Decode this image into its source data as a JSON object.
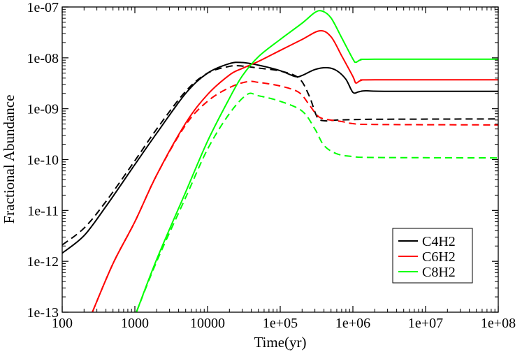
{
  "chart_data": {
    "type": "line",
    "title": "",
    "xlabel": "Time(yr)",
    "ylabel": "Fractional Abundance",
    "xscale": "log",
    "yscale": "log",
    "xlim": [
      100,
      100000000
    ],
    "ylim": [
      1e-13,
      1e-07
    ],
    "xticks": [
      {
        "value": 100,
        "label": "100"
      },
      {
        "value": 1000,
        "label": "1000"
      },
      {
        "value": 10000,
        "label": "10000"
      },
      {
        "value": 100000,
        "label": "1e+05"
      },
      {
        "value": 1000000,
        "label": "1e+06"
      },
      {
        "value": 10000000,
        "label": "1e+07"
      },
      {
        "value": 100000000,
        "label": "1e+08"
      }
    ],
    "yticks": [
      {
        "value": 1e-13,
        "label": "1e-13"
      },
      {
        "value": 1e-12,
        "label": "1e-12"
      },
      {
        "value": 1e-11,
        "label": "1e-11"
      },
      {
        "value": 1e-10,
        "label": "1e-10"
      },
      {
        "value": 1e-09,
        "label": "1e-09"
      },
      {
        "value": 1e-08,
        "label": "1e-08"
      },
      {
        "value": 1e-07,
        "label": "1e-07"
      }
    ],
    "legend_position": "bottom-right",
    "legend": [
      {
        "label": "C4H2",
        "color": "#000000"
      },
      {
        "label": "C6H2",
        "color": "#ff0000"
      },
      {
        "label": "C8H2",
        "color": "#00ff00"
      }
    ],
    "series": [
      {
        "name": "C4H2 (solid)",
        "color": "#000000",
        "dash": false,
        "points": [
          [
            100,
            1.45e-12
          ],
          [
            200,
            3.2e-12
          ],
          [
            400,
            1.2e-11
          ],
          [
            1000,
            8e-11
          ],
          [
            2000,
            3.3e-10
          ],
          [
            5000,
            2e-09
          ],
          [
            10000,
            5e-09
          ],
          [
            20000,
            7.7e-09
          ],
          [
            30000,
            8.1e-09
          ],
          [
            50000,
            7.2e-09
          ],
          [
            100000,
            5.6e-09
          ],
          [
            160000,
            4.3e-09
          ],
          [
            200000,
            4.5e-09
          ],
          [
            300000,
            5.9e-09
          ],
          [
            450000,
            6.4e-09
          ],
          [
            600000,
            5.6e-09
          ],
          [
            800000,
            3.8e-09
          ],
          [
            1000000,
            2.1e-09
          ],
          [
            1200000,
            2.15e-09
          ],
          [
            1500000,
            2.25e-09
          ],
          [
            3000000,
            2.2e-09
          ],
          [
            100000000,
            2.2e-09
          ]
        ]
      },
      {
        "name": "C4H2 (dashed)",
        "color": "#000000",
        "dash": true,
        "points": [
          [
            100,
            2.1e-12
          ],
          [
            200,
            4.5e-12
          ],
          [
            400,
            1.5e-11
          ],
          [
            1000,
            9.5e-11
          ],
          [
            2000,
            4e-10
          ],
          [
            5000,
            2.2e-09
          ],
          [
            10000,
            5e-09
          ],
          [
            20000,
            6.8e-09
          ],
          [
            30000,
            6.9e-09
          ],
          [
            50000,
            6.3e-09
          ],
          [
            100000,
            5.5e-09
          ],
          [
            180000,
            4e-09
          ],
          [
            250000,
            1.8e-09
          ],
          [
            320000,
            7e-10
          ],
          [
            400000,
            5.8e-10
          ],
          [
            600000,
            6e-10
          ],
          [
            1000000,
            6.1e-10
          ],
          [
            2000000,
            6.2e-10
          ],
          [
            100000000,
            6.3e-10
          ]
        ]
      },
      {
        "name": "C6H2 (solid)",
        "color": "#ff0000",
        "dash": false,
        "points": [
          [
            260,
            1e-13
          ],
          [
            500,
            9e-13
          ],
          [
            1000,
            6e-12
          ],
          [
            2000,
            5e-11
          ],
          [
            5000,
            5.2e-10
          ],
          [
            10000,
            1.9e-09
          ],
          [
            20000,
            4.6e-09
          ],
          [
            30000,
            6.2e-09
          ],
          [
            50000,
            8.5e-09
          ],
          [
            100000,
            1.4e-08
          ],
          [
            200000,
            2.3e-08
          ],
          [
            350000,
            3.4e-08
          ],
          [
            500000,
            2.6e-08
          ],
          [
            700000,
            1.1e-08
          ],
          [
            1000000,
            4.3e-09
          ],
          [
            1100000,
            3.2e-09
          ],
          [
            1300000,
            3.6e-09
          ],
          [
            2000000,
            3.7e-09
          ],
          [
            100000000,
            3.7e-09
          ]
        ]
      },
      {
        "name": "C6H2 (dashed)",
        "color": "#ff0000",
        "dash": true,
        "points": [
          [
            260,
            1e-13
          ],
          [
            500,
            9e-13
          ],
          [
            1000,
            6e-12
          ],
          [
            2000,
            5e-11
          ],
          [
            5000,
            4.8e-10
          ],
          [
            10000,
            1.4e-09
          ],
          [
            20000,
            2.6e-09
          ],
          [
            35000,
            3.4e-09
          ],
          [
            50000,
            3.3e-09
          ],
          [
            100000,
            2.8e-09
          ],
          [
            180000,
            2.1e-09
          ],
          [
            250000,
            1.2e-09
          ],
          [
            320000,
            7.5e-10
          ],
          [
            400000,
            6.3e-10
          ],
          [
            700000,
            5.6e-10
          ],
          [
            1000000,
            5.1e-10
          ],
          [
            2000000,
            4.9e-10
          ],
          [
            100000000,
            4.8e-10
          ]
        ]
      },
      {
        "name": "C8H2 (solid)",
        "color": "#00ff00",
        "dash": false,
        "points": [
          [
            1050,
            1e-13
          ],
          [
            2000,
            1.1e-12
          ],
          [
            5000,
            2.3e-11
          ],
          [
            10000,
            2.3e-10
          ],
          [
            20000,
            1.6e-09
          ],
          [
            30000,
            4.4e-09
          ],
          [
            50000,
            1.05e-08
          ],
          [
            100000,
            2.3e-08
          ],
          [
            200000,
            4.8e-08
          ],
          [
            300000,
            7.8e-08
          ],
          [
            380000,
            8.3e-08
          ],
          [
            500000,
            6.1e-08
          ],
          [
            700000,
            2.5e-08
          ],
          [
            1000000,
            9.5e-09
          ],
          [
            1100000,
            8.2e-09
          ],
          [
            1300000,
            9.2e-09
          ],
          [
            2000000,
            9.4e-09
          ],
          [
            100000000,
            9.4e-09
          ]
        ]
      },
      {
        "name": "C8H2 (dashed)",
        "color": "#00ff00",
        "dash": true,
        "points": [
          [
            1050,
            1e-13
          ],
          [
            2000,
            1e-12
          ],
          [
            5000,
            1.8e-11
          ],
          [
            10000,
            1.6e-10
          ],
          [
            20000,
            8e-10
          ],
          [
            35000,
            1.9e-09
          ],
          [
            50000,
            1.8e-09
          ],
          [
            100000,
            1.4e-09
          ],
          [
            200000,
            9e-10
          ],
          [
            300000,
            4e-10
          ],
          [
            400000,
            1.9e-10
          ],
          [
            600000,
            1.3e-10
          ],
          [
            1000000,
            1.15e-10
          ],
          [
            2000000,
            1.1e-10
          ],
          [
            100000000,
            1.08e-10
          ]
        ]
      }
    ]
  }
}
